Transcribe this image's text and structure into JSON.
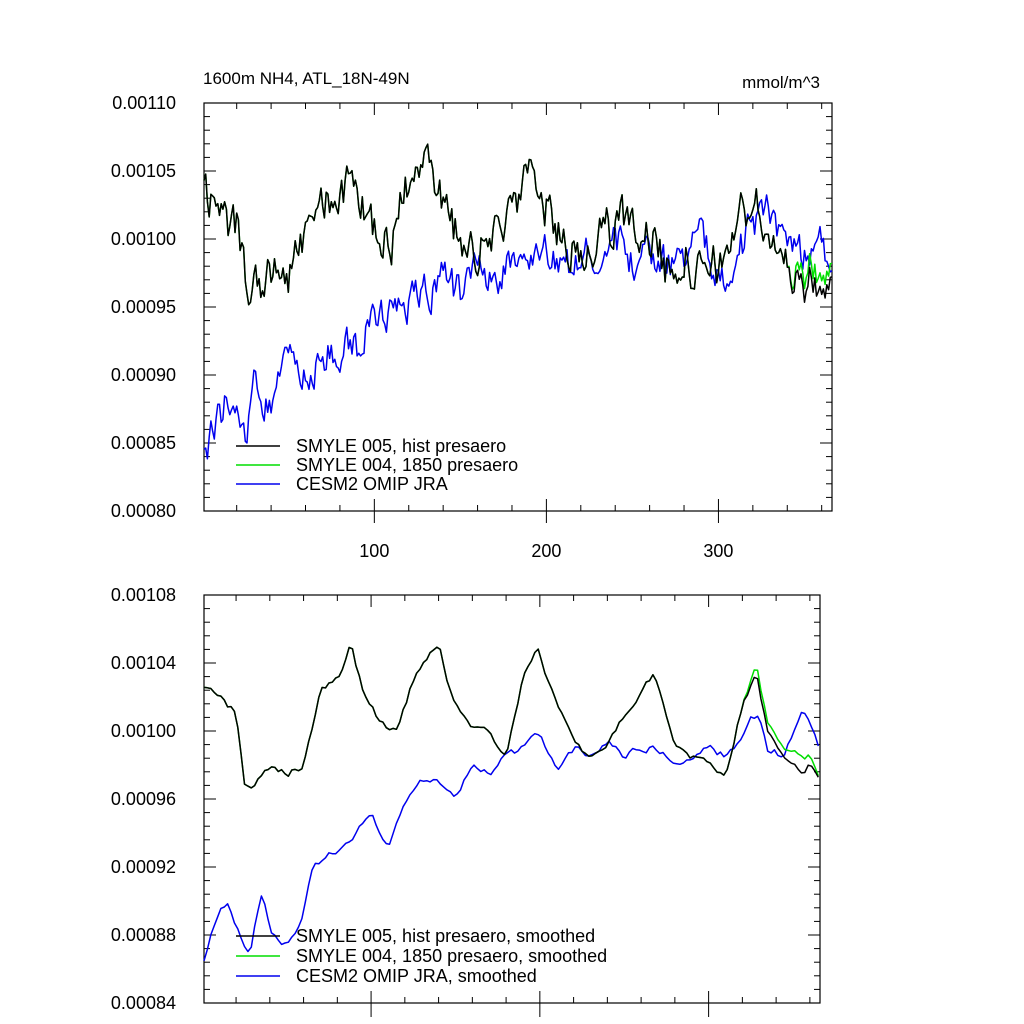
{
  "chart_data": [
    {
      "type": "line",
      "title": "1600m NH4, ATL_18N-49N",
      "units_label": "mmol/m^3",
      "xlim": [
        1,
        366
      ],
      "ylim": [
        0.0008,
        0.0011
      ],
      "xticks": [
        100,
        200,
        300
      ],
      "xtick_labels": [
        "100",
        "200",
        "300"
      ],
      "yticks": [
        0.0008,
        0.00085,
        0.0009,
        0.00095,
        0.001,
        0.00105,
        0.0011
      ],
      "ytick_labels": [
        "0.00080",
        "0.00085",
        "0.00090",
        "0.00095",
        "0.00100",
        "0.00105",
        "0.00110"
      ],
      "grid": false,
      "legend": "bottom-left",
      "series": [
        {
          "name": "SMYLE 005, hist presaero",
          "color": "#000000",
          "x": [
            1,
            10,
            20,
            25,
            30,
            40,
            50,
            60,
            70,
            80,
            90,
            100,
            110,
            120,
            130,
            140,
            150,
            160,
            170,
            180,
            190,
            200,
            210,
            220,
            230,
            240,
            250,
            260,
            270,
            280,
            290,
            300,
            310,
            320,
            330,
            340,
            350,
            360,
            366
          ],
          "values": [
            0.00103,
            0.00102,
            0.00101,
            0.00097,
            0.00096,
            0.00098,
            0.00097,
            0.00101,
            0.00102,
            0.00104,
            0.00103,
            0.00101,
            0.001,
            0.00104,
            0.00105,
            0.00103,
            0.001,
            0.00099,
            0.001,
            0.00103,
            0.00104,
            0.00102,
            0.001,
            0.00099,
            0.001,
            0.00101,
            0.00102,
            0.001,
            0.00098,
            0.00099,
            0.00097,
            0.00098,
            0.00101,
            0.00103,
            0.001,
            0.00098,
            0.00096,
            0.00097,
            0.00096
          ]
        },
        {
          "name": "SMYLE 004, 1850 presaero",
          "color": "#00dd00",
          "x": [
            1,
            10,
            20,
            25,
            30,
            40,
            50,
            60,
            70,
            80,
            90,
            100,
            110,
            120,
            130,
            140,
            150,
            160,
            170,
            180,
            190,
            200,
            210,
            220,
            230,
            240,
            250,
            260,
            270,
            280,
            290,
            300,
            310,
            320,
            330,
            340,
            350,
            360,
            366
          ],
          "values": [
            0.00103,
            0.00102,
            0.00101,
            0.00097,
            0.00096,
            0.00098,
            0.00097,
            0.00101,
            0.00102,
            0.00104,
            0.00103,
            0.00101,
            0.001,
            0.00104,
            0.00105,
            0.00103,
            0.001,
            0.00099,
            0.001,
            0.00103,
            0.00104,
            0.00102,
            0.001,
            0.00099,
            0.001,
            0.00101,
            0.00102,
            0.001,
            0.00098,
            0.00099,
            0.00097,
            0.00098,
            0.00101,
            0.00103,
            0.001,
            0.00098,
            0.00097,
            0.00098,
            0.00097
          ]
        },
        {
          "name": "CESM2 OMIP JRA",
          "color": "#0000ee",
          "x": [
            1,
            10,
            20,
            25,
            30,
            40,
            50,
            60,
            70,
            80,
            90,
            100,
            110,
            120,
            130,
            140,
            150,
            160,
            170,
            180,
            190,
            200,
            210,
            220,
            230,
            240,
            250,
            260,
            270,
            280,
            290,
            300,
            310,
            320,
            330,
            340,
            350,
            360,
            366
          ],
          "values": [
            0.00084,
            0.00087,
            0.00089,
            0.00085,
            0.00089,
            0.00088,
            0.00091,
            0.0009,
            0.00091,
            0.00092,
            0.00092,
            0.00094,
            0.00095,
            0.00095,
            0.00096,
            0.00097,
            0.00096,
            0.00098,
            0.00097,
            0.00098,
            0.00099,
            0.00099,
            0.00098,
            0.00099,
            0.00099,
            0.001,
            0.00098,
            0.00099,
            0.00098,
            0.00099,
            0.001,
            0.00097,
            0.00099,
            0.00101,
            0.00102,
            0.001,
            0.00099,
            0.001,
            0.00098
          ]
        }
      ]
    },
    {
      "type": "line",
      "title": "",
      "xlim": [
        1,
        366
      ],
      "ylim": [
        0.00084,
        0.00108
      ],
      "xticks": [
        100,
        200,
        300
      ],
      "yticks": [
        0.00084,
        0.00088,
        0.00092,
        0.00096,
        0.001,
        0.00104,
        0.00108
      ],
      "ytick_labels": [
        "0.00084",
        "0.00088",
        "0.00092",
        "0.00096",
        "0.00100",
        "0.00104",
        "0.00108"
      ],
      "grid": false,
      "legend": "bottom-left",
      "series": [
        {
          "name": "SMYLE 005, hist presaero, smoothed",
          "color": "#000000",
          "x": [
            1,
            12,
            20,
            25,
            30,
            40,
            50,
            60,
            70,
            80,
            88,
            95,
            105,
            115,
            125,
            135,
            140,
            148,
            158,
            168,
            180,
            190,
            198,
            208,
            218,
            228,
            238,
            248,
            258,
            268,
            280,
            290,
            300,
            310,
            320,
            328,
            335,
            345,
            355,
            360,
            366
          ],
          "values": [
            0.001025,
            0.00102,
            0.00101,
            0.00097,
            0.000965,
            0.00098,
            0.000975,
            0.00098,
            0.001025,
            0.00103,
            0.00105,
            0.001025,
            0.001005,
            0.001,
            0.00103,
            0.001045,
            0.00105,
            0.00102,
            0.001005,
            0.001,
            0.000985,
            0.00103,
            0.00105,
            0.00102,
            0.001,
            0.000985,
            0.00099,
            0.001005,
            0.00102,
            0.001035,
            0.00099,
            0.000985,
            0.00098,
            0.000975,
            0.001015,
            0.001035,
            0.001,
            0.000985,
            0.000975,
            0.00098,
            0.00097
          ]
        },
        {
          "name": "SMYLE 004, 1850 presaero, smoothed",
          "color": "#00dd00",
          "x": [
            1,
            12,
            20,
            25,
            30,
            40,
            50,
            60,
            70,
            80,
            88,
            95,
            105,
            115,
            125,
            135,
            140,
            148,
            158,
            168,
            180,
            190,
            198,
            208,
            218,
            228,
            238,
            248,
            258,
            268,
            280,
            290,
            300,
            310,
            320,
            328,
            335,
            345,
            355,
            360,
            366
          ],
          "values": [
            0.001025,
            0.00102,
            0.00101,
            0.00097,
            0.000965,
            0.00098,
            0.000975,
            0.00098,
            0.001025,
            0.00103,
            0.00105,
            0.001025,
            0.001005,
            0.001,
            0.00103,
            0.001045,
            0.00105,
            0.00102,
            0.001005,
            0.001,
            0.000985,
            0.00103,
            0.00105,
            0.00102,
            0.001,
            0.000985,
            0.00099,
            0.001005,
            0.00102,
            0.001035,
            0.00099,
            0.000985,
            0.00098,
            0.000975,
            0.001015,
            0.00104,
            0.001005,
            0.00099,
            0.000985,
            0.000985,
            0.00097
          ]
        },
        {
          "name": "CESM2 OMIP JRA, smoothed",
          "color": "#0000ee",
          "x": [
            1,
            8,
            15,
            22,
            28,
            35,
            42,
            50,
            58,
            65,
            72,
            80,
            90,
            100,
            110,
            120,
            130,
            140,
            150,
            160,
            170,
            180,
            190,
            200,
            210,
            220,
            230,
            240,
            250,
            260,
            270,
            280,
            290,
            300,
            310,
            320,
            325,
            330,
            335,
            345,
            355,
            360,
            366
          ],
          "values": [
            0.000865,
            0.00089,
            0.0009,
            0.00088,
            0.00087,
            0.000905,
            0.00088,
            0.000875,
            0.000885,
            0.00092,
            0.000925,
            0.00093,
            0.00094,
            0.00095,
            0.00093,
            0.00096,
            0.00097,
            0.00097,
            0.00096,
            0.00098,
            0.000975,
            0.000985,
            0.00099,
            0.001,
            0.000975,
            0.00099,
            0.000985,
            0.000995,
            0.000985,
            0.00099,
            0.00099,
            0.00098,
            0.000985,
            0.00099,
            0.000985,
            0.000995,
            0.00101,
            0.00101,
            0.00099,
            0.000985,
            0.00101,
            0.001005,
            0.00099
          ]
        }
      ]
    }
  ]
}
